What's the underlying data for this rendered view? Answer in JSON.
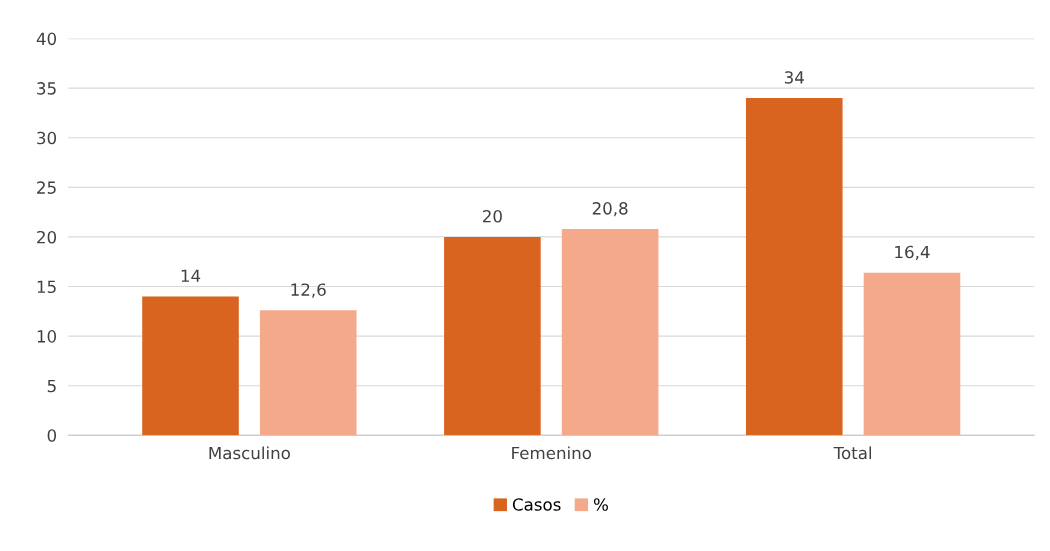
{
  "chart_data": {
    "type": "bar",
    "categories": [
      "Masculino",
      "Femenino",
      "Total"
    ],
    "series": [
      {
        "name": "Casos",
        "color": "#d8641f",
        "values": [
          14,
          20,
          34
        ],
        "value_labels": [
          "14",
          "20",
          "34"
        ]
      },
      {
        "name": "%",
        "color": "#f4a98a",
        "values": [
          12.6,
          20.8,
          16.4
        ],
        "value_labels": [
          "12,6",
          "20,8",
          "16,4"
        ]
      }
    ],
    "ylim": [
      0,
      40
    ],
    "yticks": [
      0,
      5,
      10,
      15,
      20,
      25,
      30,
      35,
      40
    ],
    "grid": "y",
    "legend": "bottom"
  }
}
